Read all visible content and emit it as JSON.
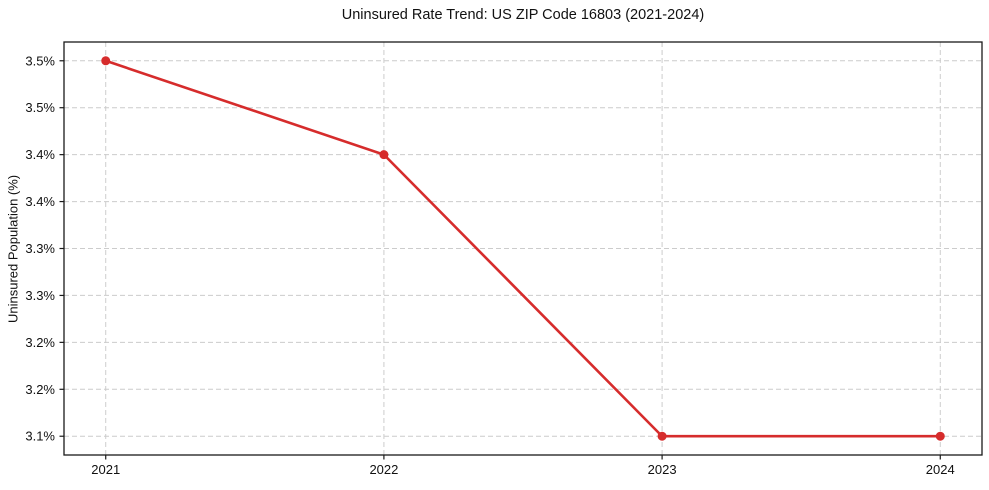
{
  "chart_data": {
    "type": "line",
    "title": "Uninsured Rate Trend: US ZIP Code 16803 (2021-2024)",
    "xlabel": "",
    "ylabel": "Uninsured Population (%)",
    "x": [
      2021,
      2022,
      2023,
      2024
    ],
    "xtick_labels": [
      "2021",
      "2022",
      "2023",
      "2024"
    ],
    "series": [
      {
        "values": [
          3.5,
          3.4,
          3.1,
          3.1
        ]
      }
    ],
    "xlim": [
      2020.85,
      2024.15
    ],
    "ylim": [
      3.08,
      3.52
    ],
    "yticks": [
      3.1,
      3.15,
      3.2,
      3.25,
      3.3,
      3.35,
      3.4,
      3.45,
      3.5
    ],
    "ytick_labels": [
      "3.1%",
      "3.2%",
      "3.2%",
      "3.3%",
      "3.3%",
      "3.4%",
      "3.4%",
      "3.5%",
      "3.5%"
    ],
    "grid": true,
    "legend": "none",
    "colors": {
      "line": "#d62c2c",
      "marker": "#d62c2c",
      "grid": "#cccccc",
      "axis": "#1a1a1a",
      "text": "#111111",
      "background": "#ffffff"
    }
  }
}
